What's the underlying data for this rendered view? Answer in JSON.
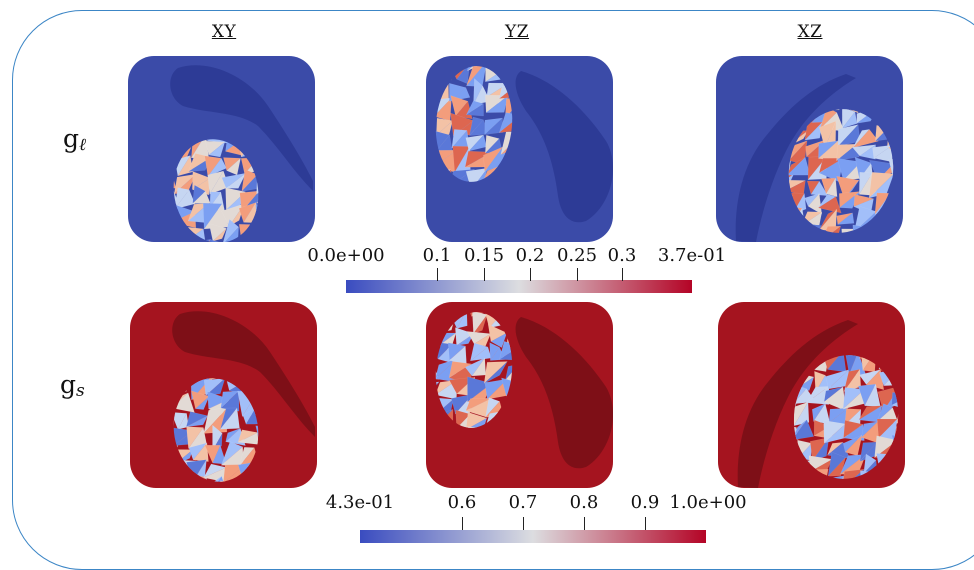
{
  "columns": [
    "XY",
    "YZ",
    "XZ"
  ],
  "rows": [
    {
      "symbol": "g",
      "subscript": "ℓ"
    },
    {
      "symbol": "g",
      "subscript": "s"
    }
  ],
  "colorbars": [
    {
      "min_label": "0.0e+00",
      "max_label": "3.7e-01",
      "ticks": [
        "0.1",
        "0.15",
        "0.2",
        "0.25",
        "0.3"
      ],
      "colors": [
        "#3a4cc0",
        "#dcdde0",
        "#b40426"
      ],
      "background": "#3b4ba8"
    },
    {
      "min_label": "4.3e-01",
      "max_label": "1.0e+00",
      "ticks": [
        "0.6",
        "0.7",
        "0.8",
        "0.9"
      ],
      "colors": [
        "#3a4cc0",
        "#dcdde0",
        "#b40426"
      ],
      "background": "#a5141f"
    }
  ]
}
